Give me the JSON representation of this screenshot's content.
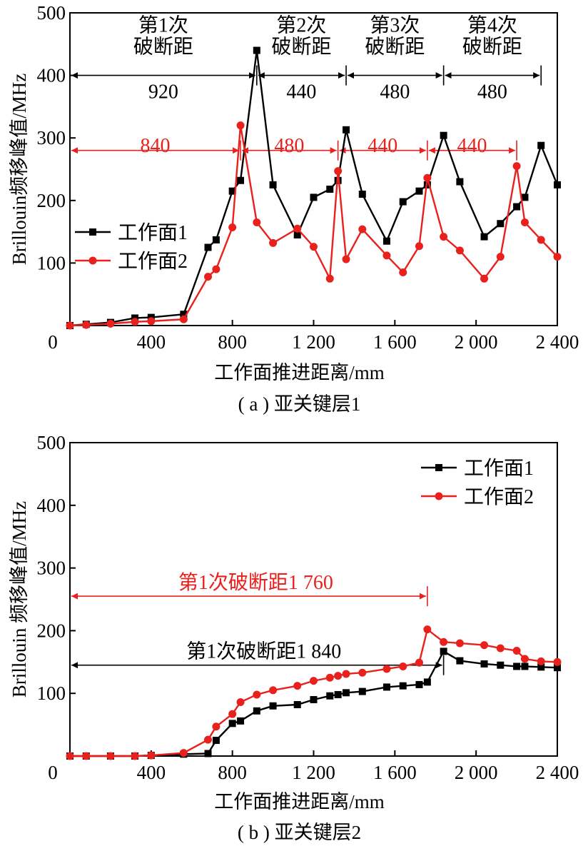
{
  "chart_data": [
    {
      "type": "line",
      "caption": "( a ) 亚关键层1",
      "xlabel": "工作面推进距离/mm",
      "ylabel": "Brillouin频移峰值/MHz",
      "xlim": [
        0,
        2400
      ],
      "ylim": [
        0,
        500
      ],
      "xticks": [
        {
          "v": 0,
          "label": "0"
        },
        {
          "v": 400,
          "label": "400"
        },
        {
          "v": 800,
          "label": "800"
        },
        {
          "v": 1200,
          "label": "1 200"
        },
        {
          "v": 1600,
          "label": "1 600"
        },
        {
          "v": 2000,
          "label": "2 000"
        },
        {
          "v": 2400,
          "label": "2 400"
        }
      ],
      "yticks": [
        {
          "v": 100,
          "label": "100"
        },
        {
          "v": 200,
          "label": "200"
        },
        {
          "v": 300,
          "label": "300"
        },
        {
          "v": 400,
          "label": "400"
        },
        {
          "v": 500,
          "label": "500"
        }
      ],
      "legend_position": "middle-left",
      "series": [
        {
          "name": "工作面1",
          "color": "#000000",
          "marker": "square",
          "x": [
            0,
            80,
            200,
            320,
            400,
            560,
            680,
            720,
            800,
            840,
            920,
            1000,
            1120,
            1200,
            1280,
            1320,
            1360,
            1440,
            1560,
            1640,
            1720,
            1760,
            1840,
            1920,
            2040,
            2120,
            2200,
            2240,
            2320,
            2400
          ],
          "y": [
            0,
            2,
            5,
            12,
            13,
            18,
            125,
            137,
            215,
            232,
            440,
            225,
            145,
            205,
            218,
            232,
            313,
            210,
            135,
            198,
            215,
            225,
            304,
            230,
            142,
            163,
            190,
            205,
            288,
            225
          ]
        },
        {
          "name": "工作面2",
          "color": "#e8211d",
          "marker": "circle",
          "x": [
            0,
            80,
            200,
            320,
            400,
            560,
            680,
            720,
            800,
            840,
            920,
            1000,
            1120,
            1200,
            1280,
            1320,
            1360,
            1440,
            1560,
            1640,
            1720,
            1760,
            1840,
            1920,
            2040,
            2120,
            2200,
            2240,
            2320,
            2400
          ],
          "y": [
            0,
            1,
            3,
            6,
            7,
            10,
            78,
            90,
            157,
            320,
            165,
            132,
            155,
            126,
            75,
            247,
            106,
            154,
            112,
            85,
            127,
            236,
            142,
            120,
            75,
            110,
            255,
            165,
            137,
            110
          ]
        }
      ],
      "annotations": [
        {
          "label": "第1次\n破断距",
          "value": "920",
          "color": "#000000",
          "x1": 0,
          "x2": 920,
          "y": 400,
          "y_label": 470,
          "y_value": 375
        },
        {
          "label": "第2次\n破断距",
          "value": "440",
          "color": "#000000",
          "x1": 920,
          "x2": 1360,
          "y": 400,
          "y_label": 470,
          "y_value": 375
        },
        {
          "label": "第3次\n破断距",
          "value": "480",
          "color": "#000000",
          "x1": 1360,
          "x2": 1840,
          "y": 400,
          "y_label": 470,
          "y_value": 375
        },
        {
          "label": "第4次\n破断距",
          "value": "480",
          "color": "#000000",
          "x1": 1840,
          "x2": 2320,
          "y": 400,
          "y_label": 470,
          "y_value": 375
        },
        {
          "label": "",
          "value": "840",
          "color": "#e8211d",
          "x1": 0,
          "x2": 840,
          "y": 280,
          "y_value": 289
        },
        {
          "label": "",
          "value": "480",
          "color": "#e8211d",
          "x1": 840,
          "x2": 1320,
          "y": 280,
          "y_value": 289
        },
        {
          "label": "",
          "value": "440",
          "color": "#e8211d",
          "x1": 1320,
          "x2": 1760,
          "y": 280,
          "y_value": 289
        },
        {
          "label": "",
          "value": "440",
          "color": "#e8211d",
          "x1": 1760,
          "x2": 2200,
          "y": 280,
          "y_value": 289
        }
      ]
    },
    {
      "type": "line",
      "caption": "( b ) 亚关键层2",
      "xlabel": "工作面推进距离/mm",
      "ylabel": "Brillouin 频移峰值/MHz",
      "xlim": [
        0,
        2400
      ],
      "ylim": [
        0,
        500
      ],
      "xticks": [
        {
          "v": 0,
          "label": "0"
        },
        {
          "v": 400,
          "label": "400"
        },
        {
          "v": 800,
          "label": "800"
        },
        {
          "v": 1200,
          "label": "1 200"
        },
        {
          "v": 1600,
          "label": "1 600"
        },
        {
          "v": 2000,
          "label": "2 000"
        },
        {
          "v": 2400,
          "label": "2 400"
        }
      ],
      "yticks": [
        {
          "v": 100,
          "label": "100"
        },
        {
          "v": 200,
          "label": "200"
        },
        {
          "v": 300,
          "label": "300"
        },
        {
          "v": 400,
          "label": "400"
        },
        {
          "v": 500,
          "label": "500"
        }
      ],
      "legend_position": "top-right",
      "series": [
        {
          "name": "工作面1",
          "color": "#000000",
          "marker": "square",
          "x": [
            0,
            80,
            200,
            320,
            400,
            560,
            680,
            720,
            800,
            840,
            920,
            1000,
            1120,
            1200,
            1280,
            1320,
            1360,
            1440,
            1560,
            1640,
            1720,
            1760,
            1840,
            1920,
            2040,
            2120,
            2200,
            2240,
            2320,
            2400
          ],
          "y": [
            0,
            0,
            0,
            0,
            1,
            3,
            4,
            25,
            52,
            56,
            72,
            80,
            82,
            90,
            96,
            98,
            101,
            103,
            110,
            112,
            114,
            118,
            167,
            152,
            147,
            145,
            143,
            143,
            142,
            141
          ]
        },
        {
          "name": "工作面2",
          "color": "#e8211d",
          "marker": "circle",
          "x": [
            0,
            80,
            200,
            320,
            400,
            560,
            680,
            720,
            800,
            840,
            920,
            1000,
            1120,
            1200,
            1280,
            1320,
            1360,
            1440,
            1560,
            1640,
            1720,
            1760,
            1840,
            1920,
            2040,
            2120,
            2200,
            2240,
            2320,
            2400
          ],
          "y": [
            0,
            0,
            0,
            0,
            1,
            5,
            26,
            47,
            67,
            86,
            98,
            105,
            112,
            120,
            125,
            128,
            131,
            133,
            139,
            143,
            149,
            202,
            182,
            180,
            177,
            172,
            168,
            155,
            151,
            150
          ]
        }
      ],
      "annotations": [
        {
          "label": "",
          "value": "第1次破断距1 760",
          "color": "#e8211d",
          "x1": 0,
          "x2": 1760,
          "y": 255,
          "y_value": 278
        },
        {
          "label": "",
          "value": "第1次破断距1 840",
          "color": "#000000",
          "x1": 0,
          "x2": 1840,
          "y": 145,
          "y_value": 168
        }
      ]
    }
  ]
}
